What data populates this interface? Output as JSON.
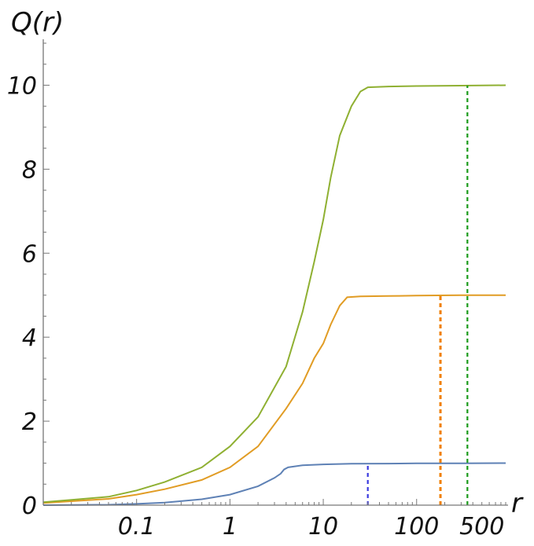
{
  "chart_data": {
    "type": "line",
    "title": "",
    "xlabel": "r",
    "ylabel": "Q(r)",
    "x_scale": "log",
    "xlim": [
      0.01,
      900
    ],
    "ylim": [
      0,
      11
    ],
    "x_ticks": [
      {
        "value": 0.1,
        "label": "0.1"
      },
      {
        "value": 1,
        "label": "1"
      },
      {
        "value": 10,
        "label": "10"
      },
      {
        "value": 100,
        "label": "100"
      },
      {
        "value": 500,
        "label": "500"
      }
    ],
    "y_ticks": [
      {
        "value": 0,
        "label": "0"
      },
      {
        "value": 2,
        "label": "2"
      },
      {
        "value": 4,
        "label": "4"
      },
      {
        "value": 6,
        "label": "6"
      },
      {
        "value": 8,
        "label": "8"
      },
      {
        "value": 10,
        "label": "10"
      }
    ],
    "grid": false,
    "legend": "none",
    "series": [
      {
        "color": "#5e81b5",
        "points": [
          [
            0.01,
            0.0
          ],
          [
            0.05,
            0.01
          ],
          [
            0.1,
            0.03
          ],
          [
            0.2,
            0.06
          ],
          [
            0.5,
            0.14
          ],
          [
            1,
            0.25
          ],
          [
            2,
            0.45
          ],
          [
            3,
            0.65
          ],
          [
            3.5,
            0.75
          ],
          [
            3.8,
            0.85
          ],
          [
            4.2,
            0.9
          ],
          [
            6,
            0.95
          ],
          [
            10,
            0.97
          ],
          [
            20,
            0.985
          ],
          [
            50,
            0.99
          ],
          [
            100,
            0.995
          ],
          [
            300,
            0.998
          ],
          [
            900,
            1.0
          ]
        ],
        "marker_x": 30
      },
      {
        "color": "#e19c24",
        "points": [
          [
            0.01,
            0.05
          ],
          [
            0.05,
            0.15
          ],
          [
            0.1,
            0.25
          ],
          [
            0.2,
            0.38
          ],
          [
            0.5,
            0.6
          ],
          [
            1,
            0.9
          ],
          [
            2,
            1.4
          ],
          [
            4,
            2.3
          ],
          [
            6,
            2.9
          ],
          [
            8,
            3.5
          ],
          [
            10,
            3.85
          ],
          [
            12,
            4.3
          ],
          [
            15,
            4.75
          ],
          [
            18,
            4.95
          ],
          [
            25,
            4.97
          ],
          [
            50,
            4.98
          ],
          [
            100,
            4.99
          ],
          [
            300,
            5.0
          ],
          [
            900,
            5.0
          ]
        ],
        "marker_x": 180
      },
      {
        "color": "#8fb032",
        "points": [
          [
            0.01,
            0.07
          ],
          [
            0.05,
            0.2
          ],
          [
            0.1,
            0.35
          ],
          [
            0.2,
            0.55
          ],
          [
            0.5,
            0.9
          ],
          [
            1,
            1.4
          ],
          [
            2,
            2.1
          ],
          [
            4,
            3.3
          ],
          [
            6,
            4.6
          ],
          [
            8,
            5.8
          ],
          [
            10,
            6.8
          ],
          [
            12,
            7.8
          ],
          [
            15,
            8.8
          ],
          [
            20,
            9.5
          ],
          [
            25,
            9.85
          ],
          [
            30,
            9.95
          ],
          [
            50,
            9.97
          ],
          [
            100,
            9.98
          ],
          [
            300,
            9.99
          ],
          [
            900,
            10.0
          ]
        ],
        "marker_x": 350
      }
    ]
  }
}
